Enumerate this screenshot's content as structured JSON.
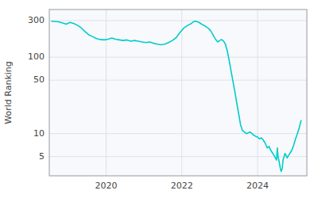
{
  "chart_data": {
    "type": "line",
    "ylabel": "World Ranking",
    "color": "#00cccc",
    "log": "y",
    "grid": true,
    "xlim": [
      2018.5,
      2025.3
    ],
    "xticks": [
      2020,
      2022,
      2024
    ],
    "ylim": [
      2.8,
      420
    ],
    "yticks": [
      5,
      10,
      50,
      100,
      300
    ],
    "x": [
      2018.55,
      2018.75,
      2018.85,
      2018.95,
      2019.05,
      2019.15,
      2019.25,
      2019.35,
      2019.45,
      2019.55,
      2019.65,
      2019.75,
      2019.85,
      2019.95,
      2020.05,
      2020.15,
      2020.25,
      2020.35,
      2020.45,
      2020.55,
      2020.65,
      2020.75,
      2020.85,
      2020.95,
      2021.05,
      2021.15,
      2021.25,
      2021.35,
      2021.45,
      2021.55,
      2021.65,
      2021.75,
      2021.85,
      2021.95,
      2022.05,
      2022.15,
      2022.25,
      2022.3,
      2022.35,
      2022.4,
      2022.45,
      2022.5,
      2022.55,
      2022.6,
      2022.65,
      2022.7,
      2022.75,
      2022.8,
      2022.85,
      2022.9,
      2022.95,
      2023.0,
      2023.05,
      2023.1,
      2023.15,
      2023.2,
      2023.25,
      2023.3,
      2023.35,
      2023.4,
      2023.45,
      2023.5,
      2023.55,
      2023.6,
      2023.65,
      2023.7,
      2023.75,
      2023.8,
      2023.85,
      2023.9,
      2023.95,
      2024.0,
      2024.05,
      2024.1,
      2024.15,
      2024.2,
      2024.25,
      2024.3,
      2024.35,
      2024.4,
      2024.45,
      2024.5,
      2024.52,
      2024.54,
      2024.56,
      2024.58,
      2024.6,
      2024.62,
      2024.65,
      2024.67,
      2024.7,
      2024.72,
      2024.75,
      2024.78,
      2024.8,
      2024.85,
      2024.9,
      2024.95,
      2025.0,
      2025.05,
      2025.1,
      2025.15
    ],
    "values": [
      295,
      290,
      280,
      270,
      285,
      275,
      260,
      240,
      215,
      195,
      185,
      175,
      170,
      168,
      172,
      178,
      172,
      168,
      165,
      168,
      162,
      165,
      162,
      158,
      155,
      158,
      152,
      148,
      145,
      148,
      155,
      165,
      180,
      210,
      240,
      260,
      275,
      290,
      295,
      292,
      285,
      275,
      265,
      258,
      248,
      238,
      225,
      205,
      185,
      168,
      158,
      165,
      170,
      162,
      148,
      120,
      90,
      65,
      48,
      35,
      25,
      18,
      13,
      11,
      10.5,
      10,
      10.2,
      10.5,
      10,
      9.5,
      9.2,
      9,
      8.5,
      8.8,
      8.2,
      7.5,
      6.5,
      6.8,
      6,
      5.5,
      5,
      4.5,
      6.5,
      5,
      4.5,
      4,
      3.5,
      3.2,
      3.5,
      4.5,
      5,
      5.5,
      5.2,
      4.8,
      5,
      5.5,
      6,
      7,
      8.5,
      10,
      12,
      15
    ]
  }
}
